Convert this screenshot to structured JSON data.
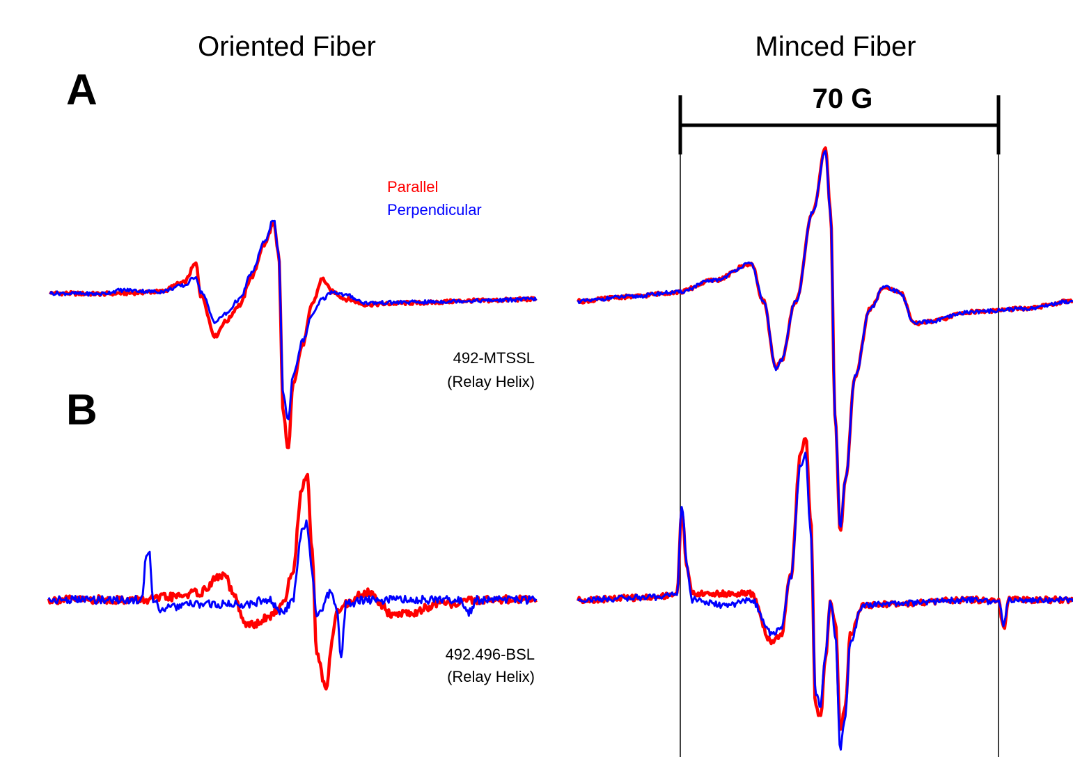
{
  "headers": {
    "left": "Oriented Fiber",
    "right": "Minced Fiber"
  },
  "panel_labels": {
    "a": "A",
    "b": "B"
  },
  "legend": {
    "parallel": "Parallel",
    "perpendicular": "Perpendicular",
    "parallel_color": "#ff0000",
    "perpendicular_color": "#0000ff"
  },
  "sample_labels": {
    "a_line1": "492-MTSSL",
    "a_line2": "(Relay Helix)",
    "b_line1": "492.496-BSL",
    "b_line2": "(Relay Helix)"
  },
  "scale_bar": {
    "label": "70 G",
    "gauss": 70
  },
  "chart_data": [
    {
      "type": "line",
      "panel": "A",
      "title": "Oriented Fiber",
      "sample": "492-MTSSL (Relay Helix)",
      "series": [
        {
          "name": "Parallel",
          "color": "#ff0000",
          "points": [
            [
              0,
              0.08
            ],
            [
              20,
              0.07
            ],
            [
              30,
              0.08
            ],
            [
              45,
              0.1
            ],
            [
              55,
              0.22
            ],
            [
              60,
              0.47
            ],
            [
              62,
              0.05
            ],
            [
              68,
              -0.49
            ],
            [
              72,
              -0.3
            ],
            [
              78,
              -0.08
            ],
            [
              83,
              0.3
            ],
            [
              88,
              0.72
            ],
            [
              92,
              1.0
            ],
            [
              94,
              0.6
            ],
            [
              96,
              -1.55
            ],
            [
              98,
              -2.0
            ],
            [
              100,
              -1.1
            ],
            [
              104,
              -0.6
            ],
            [
              108,
              -0.05
            ],
            [
              112,
              0.27
            ],
            [
              116,
              0.1
            ],
            [
              122,
              0.0
            ],
            [
              130,
              -0.07
            ],
            [
              150,
              -0.05
            ],
            [
              175,
              -0.02
            ],
            [
              200,
              0.0
            ]
          ]
        },
        {
          "name": "Perpendicular",
          "color": "#0000ff",
          "points": [
            [
              0,
              0.08
            ],
            [
              20,
              0.07
            ],
            [
              30,
              0.12
            ],
            [
              45,
              0.1
            ],
            [
              55,
              0.18
            ],
            [
              60,
              0.3
            ],
            [
              62,
              0.1
            ],
            [
              68,
              -0.3
            ],
            [
              72,
              -0.2
            ],
            [
              78,
              0.0
            ],
            [
              83,
              0.35
            ],
            [
              88,
              0.75
            ],
            [
              92,
              1.06
            ],
            [
              94,
              0.6
            ],
            [
              96,
              -1.3
            ],
            [
              98,
              -1.6
            ],
            [
              100,
              -1.0
            ],
            [
              104,
              -0.55
            ],
            [
              108,
              -0.2
            ],
            [
              112,
              0.0
            ],
            [
              116,
              0.1
            ],
            [
              122,
              0.05
            ],
            [
              130,
              -0.05
            ],
            [
              150,
              -0.04
            ],
            [
              175,
              -0.02
            ],
            [
              200,
              0.0
            ]
          ]
        }
      ]
    },
    {
      "type": "line",
      "panel": "A",
      "title": "Minced Fiber",
      "sample": "492-MTSSL (Relay Helix)",
      "series": [
        {
          "name": "Parallel",
          "color": "#ff0000",
          "points": [
            [
              0,
              0.0
            ],
            [
              20,
              0.03
            ],
            [
              40,
              0.06
            ],
            [
              55,
              0.14
            ],
            [
              70,
              0.25
            ],
            [
              75,
              0.0
            ],
            [
              80,
              -0.45
            ],
            [
              82,
              -0.4
            ],
            [
              88,
              0.0
            ],
            [
              95,
              0.6
            ],
            [
              100,
              1.03
            ],
            [
              102,
              0.6
            ],
            [
              104,
              -0.8
            ],
            [
              106,
              -1.55
            ],
            [
              108,
              -1.2
            ],
            [
              112,
              -0.5
            ],
            [
              118,
              -0.05
            ],
            [
              124,
              0.1
            ],
            [
              130,
              0.06
            ],
            [
              136,
              -0.15
            ],
            [
              140,
              -0.14
            ],
            [
              160,
              -0.07
            ],
            [
              180,
              -0.05
            ],
            [
              200,
              0.0
            ]
          ]
        },
        {
          "name": "Perpendicular",
          "color": "#0000ff",
          "points": [
            [
              0,
              0.0
            ],
            [
              20,
              0.03
            ],
            [
              40,
              0.06
            ],
            [
              55,
              0.14
            ],
            [
              70,
              0.25
            ],
            [
              75,
              0.0
            ],
            [
              80,
              -0.45
            ],
            [
              82,
              -0.4
            ],
            [
              88,
              0.0
            ],
            [
              95,
              0.6
            ],
            [
              100,
              1.0
            ],
            [
              102,
              0.6
            ],
            [
              104,
              -0.8
            ],
            [
              106,
              -1.52
            ],
            [
              108,
              -1.2
            ],
            [
              112,
              -0.5
            ],
            [
              118,
              -0.05
            ],
            [
              124,
              0.1
            ],
            [
              130,
              0.06
            ],
            [
              136,
              -0.15
            ],
            [
              140,
              -0.14
            ],
            [
              160,
              -0.07
            ],
            [
              180,
              -0.05
            ],
            [
              200,
              0.0
            ]
          ]
        }
      ]
    },
    {
      "type": "line",
      "panel": "B",
      "title": "Oriented Fiber",
      "sample": "492.496-BSL (Relay Helix)",
      "series": [
        {
          "name": "Parallel",
          "color": "#ff0000",
          "points": [
            [
              0,
              0.0
            ],
            [
              40,
              0.0
            ],
            [
              50,
              0.03
            ],
            [
              62,
              0.08
            ],
            [
              70,
              0.25
            ],
            [
              72,
              0.28
            ],
            [
              76,
              0.05
            ],
            [
              80,
              -0.25
            ],
            [
              84,
              -0.28
            ],
            [
              90,
              -0.2
            ],
            [
              96,
              -0.05
            ],
            [
              100,
              0.3
            ],
            [
              104,
              1.25
            ],
            [
              106,
              1.38
            ],
            [
              108,
              0.6
            ],
            [
              110,
              -0.6
            ],
            [
              114,
              -1.0
            ],
            [
              116,
              -0.5
            ],
            [
              118,
              -0.15
            ],
            [
              122,
              -0.05
            ],
            [
              128,
              0.05
            ],
            [
              132,
              0.08
            ],
            [
              136,
              -0.05
            ],
            [
              140,
              -0.15
            ],
            [
              148,
              -0.15
            ],
            [
              160,
              -0.05
            ],
            [
              180,
              0.0
            ],
            [
              200,
              0.0
            ]
          ]
        },
        {
          "name": "Perpendicular",
          "color": "#0000ff",
          "points": [
            [
              0,
              0.0
            ],
            [
              30,
              0.0
            ],
            [
              38,
              0.0
            ],
            [
              40,
              0.45
            ],
            [
              41,
              0.55
            ],
            [
              43,
              0.0
            ],
            [
              46,
              -0.1
            ],
            [
              60,
              -0.05
            ],
            [
              80,
              -0.05
            ],
            [
              90,
              0.0
            ],
            [
              96,
              -0.15
            ],
            [
              100,
              0.0
            ],
            [
              104,
              0.75
            ],
            [
              106,
              0.85
            ],
            [
              108,
              0.3
            ],
            [
              110,
              -0.2
            ],
            [
              112,
              -0.12
            ],
            [
              114,
              0.05
            ],
            [
              116,
              0.1
            ],
            [
              118,
              -0.1
            ],
            [
              120,
              -0.6
            ],
            [
              122,
              -0.05
            ],
            [
              130,
              0.0
            ],
            [
              150,
              0.0
            ],
            [
              168,
              0.0
            ],
            [
              172,
              -0.15
            ],
            [
              176,
              0.0
            ],
            [
              200,
              0.0
            ]
          ]
        }
      ]
    },
    {
      "type": "line",
      "panel": "B",
      "title": "Minced Fiber",
      "sample": "492.496-BSL (Relay Helix)",
      "series": [
        {
          "name": "Parallel",
          "color": "#ff0000",
          "points": [
            [
              0,
              0.0
            ],
            [
              30,
              0.02
            ],
            [
              40,
              0.05
            ],
            [
              42,
              0.75
            ],
            [
              44,
              0.3
            ],
            [
              46,
              0.05
            ],
            [
              60,
              0.05
            ],
            [
              70,
              0.05
            ],
            [
              78,
              -0.35
            ],
            [
              82,
              -0.3
            ],
            [
              86,
              0.2
            ],
            [
              90,
              1.25
            ],
            [
              92,
              1.38
            ],
            [
              94,
              0.7
            ],
            [
              96,
              -0.9
            ],
            [
              98,
              -1.0
            ],
            [
              100,
              -0.5
            ],
            [
              102,
              0.0
            ],
            [
              104,
              -0.2
            ],
            [
              106,
              -1.1
            ],
            [
              108,
              -0.9
            ],
            [
              110,
              -0.3
            ],
            [
              115,
              -0.05
            ],
            [
              130,
              -0.03
            ],
            [
              160,
              0.0
            ],
            [
              170,
              -0.02
            ],
            [
              172,
              -0.25
            ],
            [
              174,
              0.0
            ],
            [
              200,
              0.0
            ]
          ]
        },
        {
          "name": "Perpendicular",
          "color": "#0000ff",
          "points": [
            [
              0,
              0.0
            ],
            [
              30,
              0.02
            ],
            [
              40,
              0.05
            ],
            [
              42,
              0.8
            ],
            [
              44,
              0.3
            ],
            [
              46,
              0.0
            ],
            [
              60,
              -0.05
            ],
            [
              70,
              0.0
            ],
            [
              78,
              -0.28
            ],
            [
              82,
              -0.25
            ],
            [
              86,
              0.2
            ],
            [
              90,
              1.15
            ],
            [
              92,
              1.22
            ],
            [
              94,
              0.6
            ],
            [
              96,
              -0.8
            ],
            [
              98,
              -0.9
            ],
            [
              100,
              -0.45
            ],
            [
              102,
              0.0
            ],
            [
              104,
              -0.3
            ],
            [
              106,
              -1.25
            ],
            [
              108,
              -1.0
            ],
            [
              110,
              -0.35
            ],
            [
              115,
              -0.05
            ],
            [
              130,
              -0.03
            ],
            [
              160,
              0.0
            ],
            [
              170,
              -0.02
            ],
            [
              172,
              -0.2
            ],
            [
              174,
              0.0
            ],
            [
              200,
              0.0
            ]
          ]
        }
      ]
    }
  ]
}
